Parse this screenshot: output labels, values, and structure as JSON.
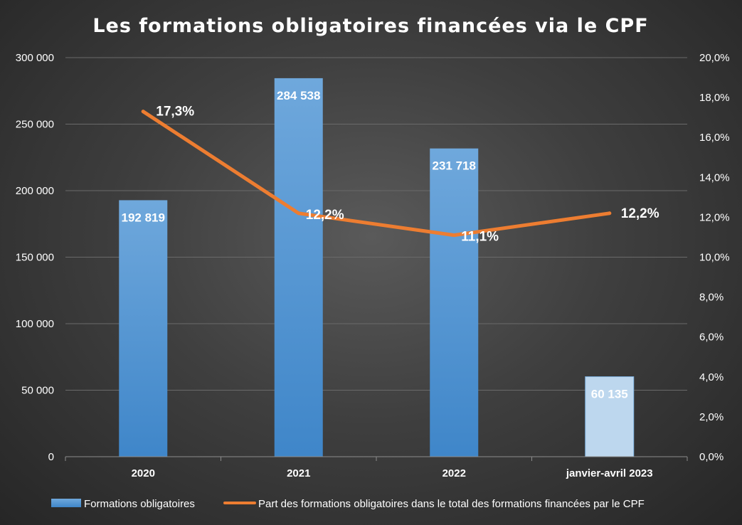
{
  "chart_data": {
    "type": "bar",
    "title": "Les formations obligatoires financées via le CPF",
    "categories": [
      "2020",
      "2021",
      "2022",
      "janvier-avril 2023"
    ],
    "series": [
      {
        "name": "Formations obligatoires",
        "type": "bar",
        "axis": "left",
        "values": [
          192819,
          284538,
          231718,
          60135
        ],
        "labels": [
          "192 819",
          "284 538",
          "231 718",
          "60 135"
        ],
        "color": "#5b9bd5",
        "highlight_last_color": "#bdd7ee"
      },
      {
        "name": "Part des formations obligatoires dans le total des formations financées par le CPF",
        "type": "line",
        "axis": "right",
        "values": [
          17.3,
          12.2,
          11.1,
          12.2
        ],
        "labels": [
          "17,3%",
          "12,2%",
          "11,1%",
          "12,2%"
        ],
        "color": "#ed7d31"
      }
    ],
    "y_left": {
      "range": [
        0,
        300000
      ],
      "ticks": [
        0,
        50000,
        100000,
        150000,
        200000,
        250000,
        300000
      ],
      "tick_labels": [
        "0",
        "50 000",
        "100 000",
        "150 000",
        "200 000",
        "250 000",
        "300 000"
      ]
    },
    "y_right": {
      "range": [
        0,
        20
      ],
      "ticks": [
        0,
        2,
        4,
        6,
        8,
        10,
        12,
        14,
        16,
        18,
        20
      ],
      "tick_labels": [
        "0,0%",
        "2,0%",
        "4,0%",
        "6,0%",
        "8,0%",
        "10,0%",
        "12,0%",
        "14,0%",
        "16,0%",
        "18,0%",
        "20,0%"
      ]
    },
    "grid": true,
    "legend_position": "bottom"
  }
}
